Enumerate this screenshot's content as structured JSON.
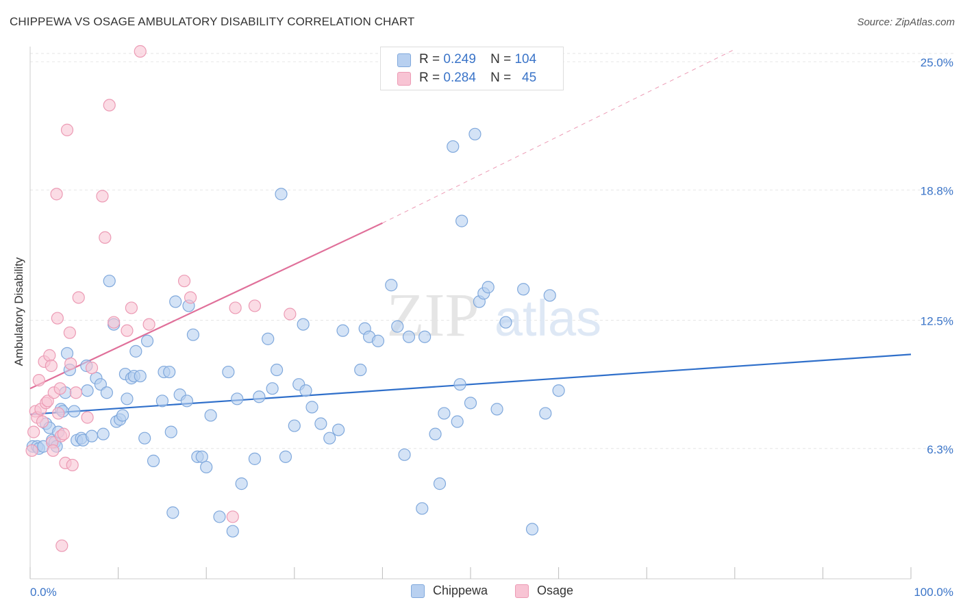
{
  "title": "CHIPPEWA VS OSAGE AMBULATORY DISABILITY CORRELATION CHART",
  "source": "Source: ZipAtlas.com",
  "watermark": {
    "zip": "ZIP",
    "atlas": "atlas"
  },
  "legend": {
    "chippewa": {
      "r_label": "R =",
      "r_value": "0.249",
      "n_label": "N =",
      "n_value": "104"
    },
    "osage": {
      "r_label": "R =",
      "r_value": "0.284",
      "n_label": "N =",
      "n_value": "45"
    }
  },
  "bottom_legend": {
    "chippewa": "Chippewa",
    "osage": "Osage"
  },
  "colors": {
    "chippewa_fill": "#b8d0f0",
    "chippewa_stroke": "#7fa8dc",
    "chippewa_line": "#2f6fca",
    "osage_fill": "#f8c4d4",
    "osage_stroke": "#ec9ab4",
    "osage_line": "#e0709a",
    "axis_label": "#3a74c8",
    "grid": "#e6e6e6"
  },
  "chart_data": {
    "type": "scatter",
    "title": "CHIPPEWA VS OSAGE AMBULATORY DISABILITY CORRELATION CHART",
    "xlabel": "",
    "ylabel": "Ambulatory Disability",
    "xlim": [
      0,
      100
    ],
    "ylim": [
      0,
      25.6
    ],
    "x_tick_labels": [
      "0.0%",
      "100.0%"
    ],
    "y_ticks": [
      6.3,
      12.5,
      18.8,
      25.0
    ],
    "y_tick_labels": [
      "6.3%",
      "12.5%",
      "18.8%",
      "25.0%"
    ],
    "grid": true,
    "series": [
      {
        "name": "Chippewa",
        "points": [
          [
            0.3,
            6.4
          ],
          [
            0.8,
            6.4
          ],
          [
            1.0,
            6.3
          ],
          [
            1.5,
            6.4
          ],
          [
            1.8,
            7.5
          ],
          [
            2.2,
            7.3
          ],
          [
            2.5,
            6.7
          ],
          [
            2.8,
            6.6
          ],
          [
            3.0,
            6.4
          ],
          [
            3.2,
            7.1
          ],
          [
            3.5,
            8.2
          ],
          [
            3.7,
            8.1
          ],
          [
            4.0,
            9.0
          ],
          [
            4.2,
            10.9
          ],
          [
            4.5,
            10.1
          ],
          [
            5.0,
            8.1
          ],
          [
            5.3,
            6.7
          ],
          [
            5.8,
            6.8
          ],
          [
            6.0,
            6.7
          ],
          [
            6.4,
            10.3
          ],
          [
            6.5,
            9.1
          ],
          [
            7.0,
            6.9
          ],
          [
            7.5,
            9.7
          ],
          [
            8.0,
            9.4
          ],
          [
            8.3,
            7.0
          ],
          [
            8.7,
            9.0
          ],
          [
            9.0,
            14.4
          ],
          [
            9.5,
            12.3
          ],
          [
            9.8,
            7.6
          ],
          [
            10.2,
            7.7
          ],
          [
            10.5,
            7.9
          ],
          [
            10.8,
            9.9
          ],
          [
            11.0,
            8.7
          ],
          [
            11.5,
            9.7
          ],
          [
            11.8,
            9.8
          ],
          [
            12.0,
            11.0
          ],
          [
            12.5,
            9.8
          ],
          [
            13.0,
            6.8
          ],
          [
            13.3,
            11.5
          ],
          [
            14.0,
            5.7
          ],
          [
            15.0,
            8.6
          ],
          [
            15.2,
            10.0
          ],
          [
            15.8,
            10.0
          ],
          [
            16.0,
            7.1
          ],
          [
            16.2,
            3.2
          ],
          [
            16.5,
            13.4
          ],
          [
            17.0,
            8.9
          ],
          [
            17.8,
            8.6
          ],
          [
            18.0,
            13.2
          ],
          [
            18.5,
            11.8
          ],
          [
            19.0,
            5.9
          ],
          [
            19.5,
            5.9
          ],
          [
            20.0,
            5.4
          ],
          [
            20.5,
            7.9
          ],
          [
            21.5,
            3.0
          ],
          [
            22.5,
            10.0
          ],
          [
            23.0,
            2.3
          ],
          [
            23.5,
            8.7
          ],
          [
            24.0,
            4.6
          ],
          [
            25.5,
            5.8
          ],
          [
            26.0,
            8.8
          ],
          [
            27.0,
            11.6
          ],
          [
            27.5,
            9.2
          ],
          [
            28.0,
            10.1
          ],
          [
            28.5,
            18.6
          ],
          [
            29.0,
            5.9
          ],
          [
            30.0,
            7.4
          ],
          [
            30.5,
            9.4
          ],
          [
            31.0,
            12.3
          ],
          [
            31.3,
            9.1
          ],
          [
            32.0,
            8.3
          ],
          [
            33.0,
            7.5
          ],
          [
            34.0,
            6.8
          ],
          [
            35.0,
            7.2
          ],
          [
            35.5,
            12.0
          ],
          [
            37.5,
            10.1
          ],
          [
            38.0,
            12.1
          ],
          [
            38.5,
            11.7
          ],
          [
            39.5,
            11.5
          ],
          [
            41.0,
            14.2
          ],
          [
            41.7,
            12.2
          ],
          [
            42.5,
            6.0
          ],
          [
            43.0,
            11.7
          ],
          [
            44.5,
            3.4
          ],
          [
            44.8,
            11.7
          ],
          [
            46.0,
            7.0
          ],
          [
            46.5,
            4.6
          ],
          [
            47.0,
            8.0
          ],
          [
            48.0,
            20.9
          ],
          [
            48.5,
            7.6
          ],
          [
            48.8,
            9.4
          ],
          [
            49.0,
            17.3
          ],
          [
            50.0,
            8.5
          ],
          [
            50.5,
            21.5
          ],
          [
            51.0,
            13.4
          ],
          [
            51.5,
            13.8
          ],
          [
            52.0,
            14.1
          ],
          [
            53.0,
            8.2
          ],
          [
            54.0,
            12.4
          ],
          [
            56.0,
            14.0
          ],
          [
            57.0,
            2.4
          ],
          [
            58.5,
            8.0
          ],
          [
            59.0,
            13.7
          ],
          [
            60.0,
            9.1
          ]
        ]
      },
      {
        "name": "Osage",
        "points": [
          [
            0.2,
            6.2
          ],
          [
            0.4,
            7.1
          ],
          [
            0.6,
            8.1
          ],
          [
            0.8,
            7.8
          ],
          [
            1.0,
            9.6
          ],
          [
            1.2,
            8.2
          ],
          [
            1.4,
            7.6
          ],
          [
            1.6,
            10.5
          ],
          [
            1.8,
            8.5
          ],
          [
            2.0,
            8.6
          ],
          [
            2.2,
            10.8
          ],
          [
            2.4,
            10.3
          ],
          [
            2.5,
            6.6
          ],
          [
            2.6,
            6.2
          ],
          [
            2.7,
            9.0
          ],
          [
            3.0,
            18.6
          ],
          [
            3.1,
            12.6
          ],
          [
            3.2,
            8.0
          ],
          [
            3.4,
            9.2
          ],
          [
            3.5,
            6.9
          ],
          [
            3.6,
            1.6
          ],
          [
            3.8,
            7.0
          ],
          [
            4.0,
            5.6
          ],
          [
            4.2,
            21.7
          ],
          [
            4.5,
            11.9
          ],
          [
            4.6,
            10.4
          ],
          [
            4.8,
            5.5
          ],
          [
            5.2,
            9.0
          ],
          [
            5.5,
            13.6
          ],
          [
            6.5,
            7.8
          ],
          [
            7.0,
            10.2
          ],
          [
            8.2,
            18.5
          ],
          [
            8.5,
            16.5
          ],
          [
            9.0,
            22.9
          ],
          [
            9.5,
            12.4
          ],
          [
            11.0,
            12.0
          ],
          [
            11.5,
            13.1
          ],
          [
            12.5,
            25.5
          ],
          [
            13.5,
            12.3
          ],
          [
            17.5,
            14.4
          ],
          [
            18.2,
            13.6
          ],
          [
            23.0,
            3.0
          ],
          [
            23.3,
            13.1
          ],
          [
            25.5,
            13.2
          ],
          [
            29.5,
            12.8
          ]
        ]
      }
    ],
    "trendlines": [
      {
        "name": "Chippewa",
        "x": [
          0,
          100
        ],
        "y": [
          7.95,
          10.85
        ]
      },
      {
        "name": "Osage",
        "x": [
          0,
          40
        ],
        "y": [
          9.2,
          17.2
        ],
        "dashed_extension_to": [
          80,
          25.6
        ]
      }
    ]
  }
}
